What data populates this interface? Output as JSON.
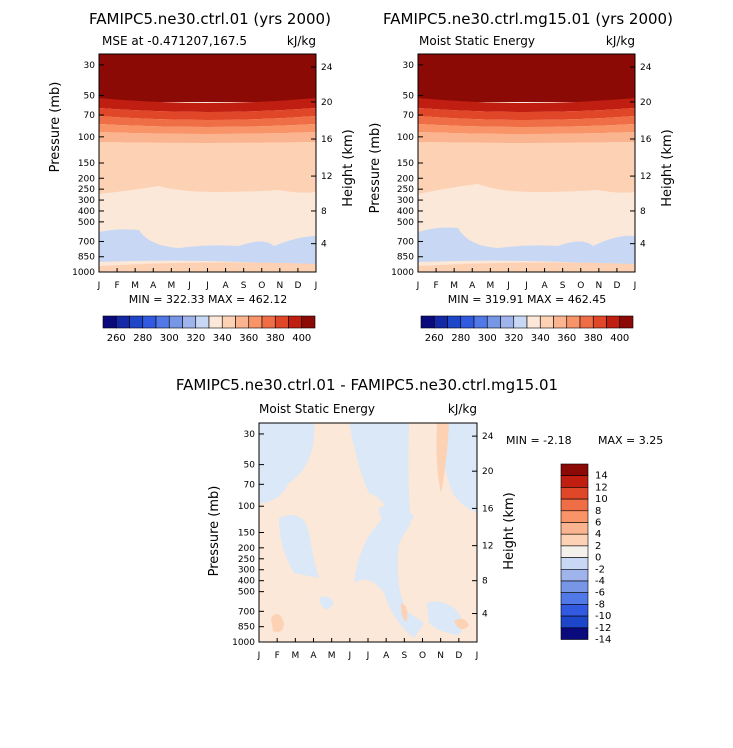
{
  "months": [
    "J",
    "F",
    "M",
    "A",
    "M",
    "J",
    "J",
    "A",
    "S",
    "O",
    "N",
    "D",
    "J"
  ],
  "chart_data": [
    {
      "type": "heatmap",
      "title": "FAMIPC5.ne30.ctrl.01 (yrs 2000)",
      "subtitle_left": "MSE at -0.471207,167.5",
      "units": "kJ/kg",
      "xlabel": "",
      "ylabel": "Pressure (mb)",
      "ylabel_right": "Height (km)",
      "pressure_ticks": [
        "30",
        "50",
        "70",
        "100",
        "150",
        "200",
        "250",
        "300",
        "400",
        "500",
        "700",
        "850",
        "1000"
      ],
      "height_ticks": [
        "4",
        "8",
        "12",
        "16",
        "20",
        "24"
      ],
      "stats": "MIN = 322.33 MAX = 462.12",
      "levels": [
        260,
        270,
        280,
        290,
        300,
        310,
        320,
        330,
        340,
        350,
        360,
        370,
        380,
        390,
        400,
        410
      ],
      "colorbar_labels": [
        "260",
        "280",
        "300",
        "320",
        "340",
        "360",
        "380",
        "400"
      ],
      "colorbar_values": [
        260,
        280,
        300,
        320,
        340,
        360,
        380,
        400
      ]
    },
    {
      "type": "heatmap",
      "title": "FAMIPC5.ne30.ctrl.mg15.01 (yrs 2000)",
      "subtitle_left": "Moist Static Energy",
      "units": "kJ/kg",
      "xlabel": "",
      "ylabel": "Pressure (mb)",
      "ylabel_right": "Height (km)",
      "pressure_ticks": [
        "30",
        "50",
        "70",
        "100",
        "150",
        "200",
        "250",
        "300",
        "400",
        "500",
        "700",
        "850",
        "1000"
      ],
      "height_ticks": [
        "4",
        "8",
        "12",
        "16",
        "20",
        "24"
      ],
      "stats": "MIN = 319.91 MAX = 462.45",
      "levels": [
        260,
        270,
        280,
        290,
        300,
        310,
        320,
        330,
        340,
        350,
        360,
        370,
        380,
        390,
        400,
        410
      ],
      "colorbar_labels": [
        "260",
        "280",
        "300",
        "320",
        "340",
        "360",
        "380",
        "400"
      ],
      "colorbar_values": [
        260,
        280,
        300,
        320,
        340,
        360,
        380,
        400
      ]
    },
    {
      "type": "heatmap",
      "title": "FAMIPC5.ne30.ctrl.01 - FAMIPC5.ne30.ctrl.mg15.01",
      "subtitle_left": "Moist Static Energy",
      "units": "kJ/kg",
      "xlabel": "",
      "ylabel": "Pressure (mb)",
      "ylabel_right": "Height (km)",
      "pressure_ticks": [
        "30",
        "50",
        "70",
        "100",
        "150",
        "200",
        "250",
        "300",
        "400",
        "500",
        "700",
        "850",
        "1000"
      ],
      "height_ticks": [
        "4",
        "8",
        "12",
        "16",
        "20",
        "24"
      ],
      "stats_min": "MIN = -2.18",
      "stats_max": "MAX = 3.25",
      "levels": [
        -14,
        -12,
        -10,
        -8,
        -6,
        -4,
        -2,
        0,
        2,
        4,
        6,
        8,
        10,
        12,
        14
      ],
      "colorbar_labels": [
        "14",
        "12",
        "10",
        "8",
        "6",
        "4",
        "2",
        "0",
        "-2",
        "-4",
        "-6",
        "-8",
        "-10",
        "-12",
        "-14"
      ]
    }
  ],
  "colors": {
    "mse_scale": [
      "#0a0a7d",
      "#1428a8",
      "#1e46c8",
      "#325ae0",
      "#5078e6",
      "#7896e6",
      "#a0b4ec",
      "#c8d8f4",
      "#fbe8d8",
      "#fdd2b4",
      "#fbb490",
      "#f89468",
      "#f06e46",
      "#e04628",
      "#c01e10",
      "#8c0a05"
    ],
    "diff_scale": [
      "#8c0a05",
      "#c01e10",
      "#e04628",
      "#f06e46",
      "#f89468",
      "#fbb490",
      "#fdd2b4",
      "#f4f0ec",
      "#c8d8f4",
      "#a0b4ec",
      "#7896e6",
      "#5078e6",
      "#325ae0",
      "#1e46c8",
      "#0a0a7d"
    ]
  }
}
